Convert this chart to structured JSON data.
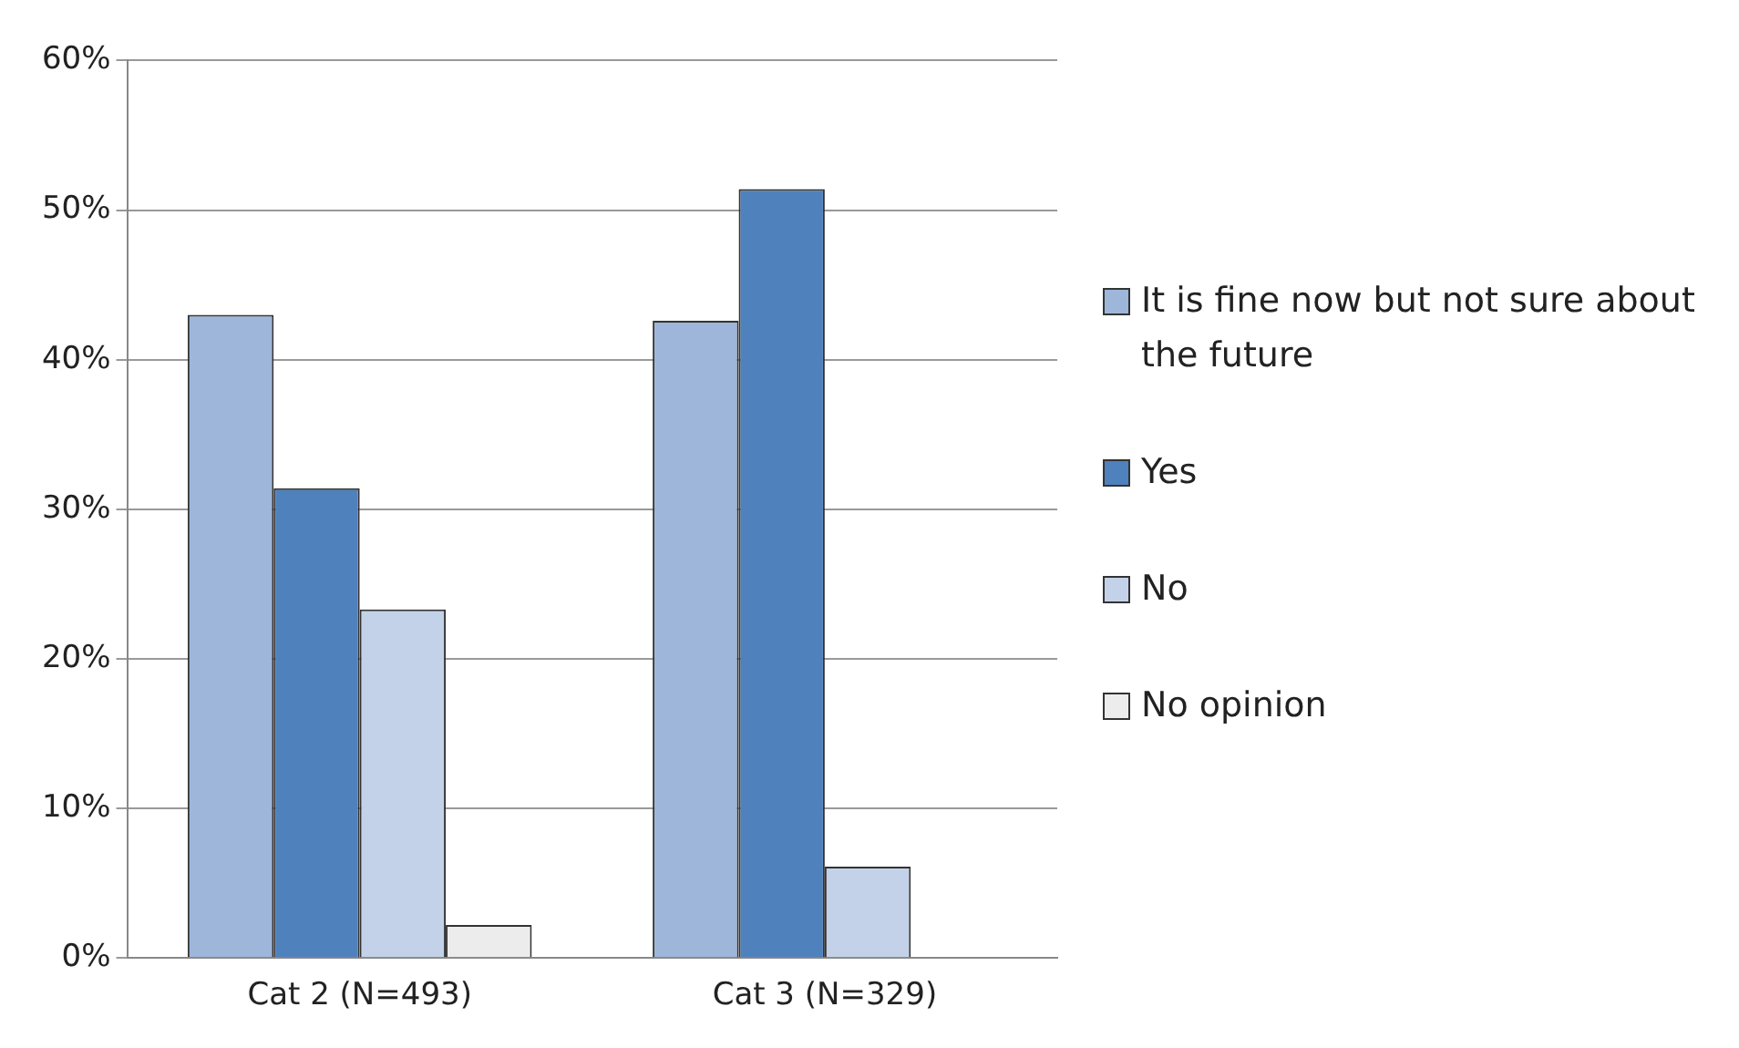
{
  "chart_data": {
    "type": "bar",
    "categories": [
      "Cat 2 (N=493)",
      "Cat 3 (N=329)"
    ],
    "series": [
      {
        "name": "It is fine now but not sure about the future",
        "color": "#9db6da",
        "values": [
          43,
          42.6
        ]
      },
      {
        "name": "Yes",
        "color": "#4f81bd",
        "values": [
          31.4,
          51.4
        ]
      },
      {
        "name": "No",
        "color": "#c3d2e8",
        "values": [
          23.3,
          6.1
        ]
      },
      {
        "name": "No opinion",
        "color": "#ececec",
        "values": [
          2.2,
          0
        ]
      }
    ],
    "ylim": [
      0,
      60
    ],
    "yticks": [
      {
        "value": 0,
        "label": "0%"
      },
      {
        "value": 10,
        "label": "10%"
      },
      {
        "value": 20,
        "label": "20%"
      },
      {
        "value": 30,
        "label": "30%"
      },
      {
        "value": 40,
        "label": "40%"
      },
      {
        "value": 50,
        "label": "50%"
      },
      {
        "value": 60,
        "label": "60%"
      }
    ],
    "grid": "y",
    "legend": "right"
  }
}
